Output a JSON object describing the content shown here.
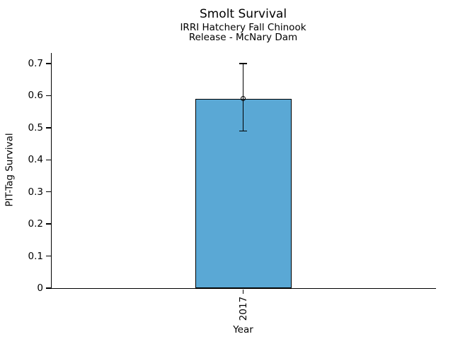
{
  "figure": {
    "background": "#ffffff",
    "text_color": "#000000"
  },
  "chart_data": {
    "type": "bar",
    "title": "Smolt Survival",
    "subtitle_line1": "IRRI Hatchery Fall Chinook",
    "subtitle_line2": "Release - McNary Dam",
    "xlabel": "Year",
    "ylabel": "PIT-Tag Survival",
    "categories": [
      "2017"
    ],
    "series": [
      {
        "name": "PIT-Tag Survival",
        "values": [
          0.59
        ]
      }
    ],
    "error_bars": [
      {
        "category": "2017",
        "low": 0.49,
        "high": 0.7
      }
    ],
    "yticks": [
      {
        "value": 0.0,
        "label": "0"
      },
      {
        "value": 0.1,
        "label": "0.1"
      },
      {
        "value": 0.2,
        "label": "0.2"
      },
      {
        "value": 0.3,
        "label": "0.3"
      },
      {
        "value": 0.4,
        "label": "0.4"
      },
      {
        "value": 0.5,
        "label": "0.5"
      },
      {
        "value": 0.6,
        "label": "0.6"
      },
      {
        "value": 0.7,
        "label": "0.7"
      }
    ],
    "ylim": [
      0,
      0.733
    ],
    "xtick_rotation": 90,
    "grid": false,
    "legend": "none",
    "bar_color": "#5AA8D5",
    "bar_edge_color": "#000000",
    "marker": "open-circle"
  }
}
